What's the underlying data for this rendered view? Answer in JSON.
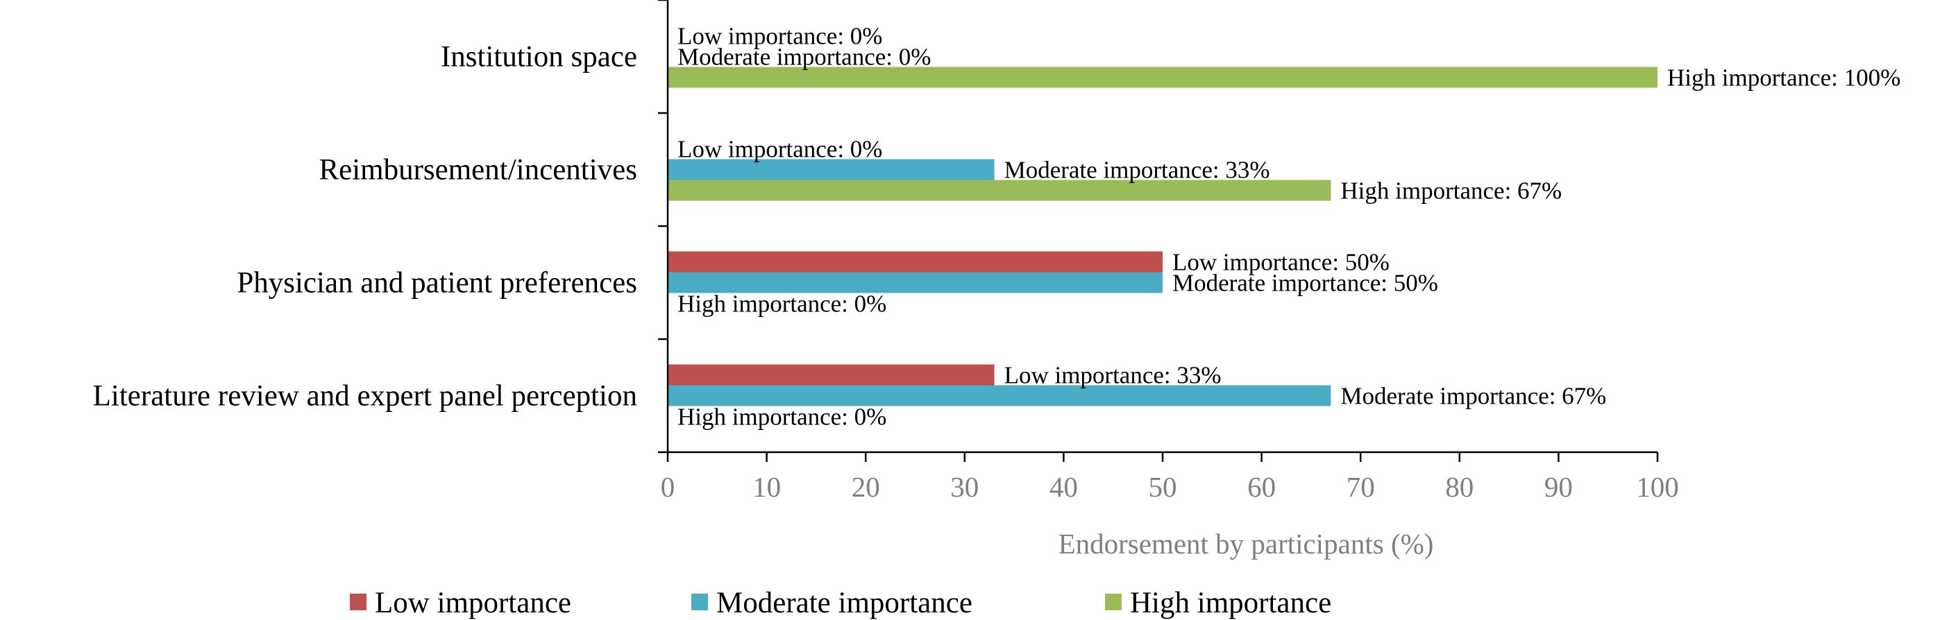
{
  "chart_data": {
    "type": "bar",
    "orientation": "horizontal",
    "categories": [
      "Institution space",
      "Reimbursement/incentives",
      "Physician and patient preferences",
      "Literature review and expert panel perception"
    ],
    "series": [
      {
        "name": "Low importance",
        "label_prefix": "Low importance",
        "color": "#c0504d",
        "values": [
          0,
          0,
          50,
          33
        ]
      },
      {
        "name": "Moderate importance",
        "label_prefix": "Moderate importance",
        "color": "#4bacc6",
        "values": [
          0,
          33,
          50,
          67
        ]
      },
      {
        "name": "High importance",
        "label_prefix": "High importance",
        "color": "#9bbb59",
        "values": [
          100,
          67,
          0,
          0
        ]
      }
    ],
    "xlabel": "Endorsement by participants (%)",
    "ylabel": "",
    "xlim": [
      0,
      100
    ],
    "xticks": [
      0,
      10,
      20,
      30,
      40,
      50,
      60,
      70,
      80,
      90,
      100
    ],
    "value_suffix": "%",
    "grid": false,
    "legend_position": "bottom"
  }
}
